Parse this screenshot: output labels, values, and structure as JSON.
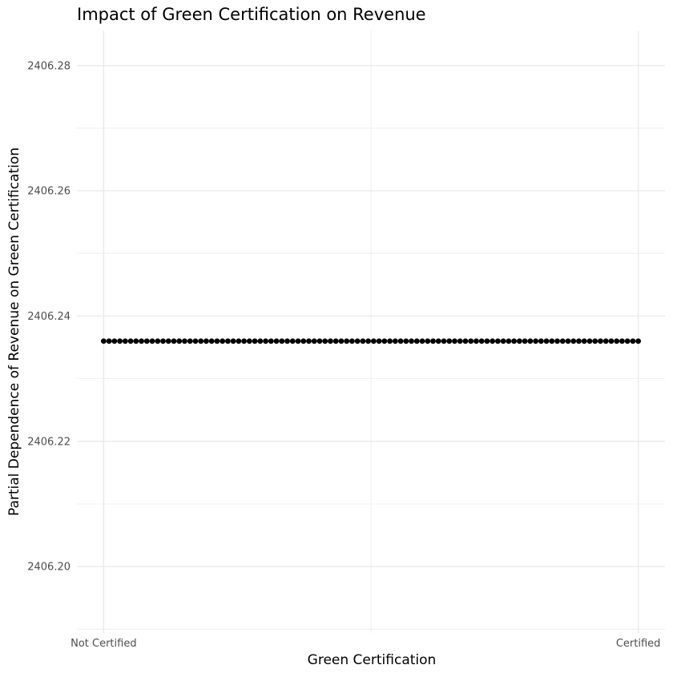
{
  "chart_data": {
    "type": "scatter",
    "title": "Impact of Green Certification on Revenue",
    "xlabel": "Green Certification",
    "ylabel": "Partial Dependence of Revenue on Green Certification",
    "x_tick_labels": [
      "Not Certified",
      "Certified"
    ],
    "y_tick_labels": [
      "2406.20",
      "2406.22",
      "2406.24",
      "2406.26",
      "2406.28"
    ],
    "xlim": [
      -0.05,
      1.05
    ],
    "ylim": [
      2406.1894,
      2406.2856
    ],
    "grid": true,
    "series": [
      {
        "x_range": [
          0,
          1
        ],
        "n_points": 100,
        "y": 2406.236,
        "color": "#000000"
      }
    ]
  }
}
